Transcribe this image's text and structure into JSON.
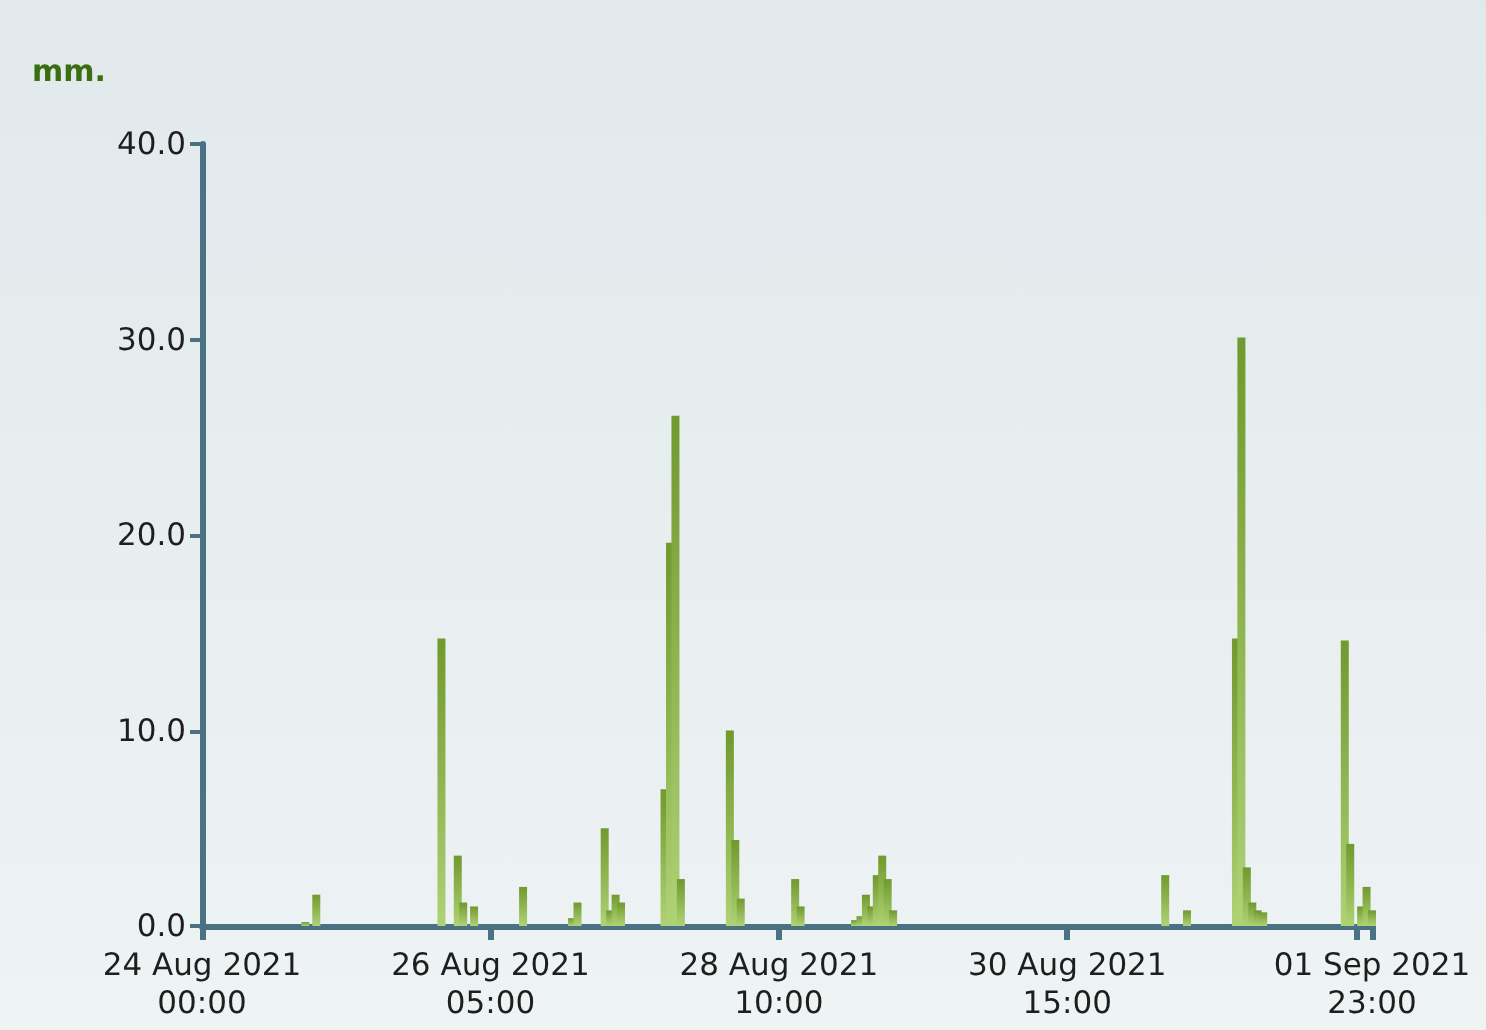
{
  "chart_data": {
    "type": "bar",
    "ylabel": "mm.",
    "color": "#8cbf3a",
    "x": [
      "2021-08-24T19:00",
      "2021-08-24T21:00",
      "2021-08-25T20:00",
      "2021-08-25T23:00",
      "2021-08-26T00:00",
      "2021-08-26T02:00",
      "2021-08-26T11:00",
      "2021-08-26T20:00",
      "2021-08-26T21:00",
      "2021-08-27T02:00",
      "2021-08-27T03:00",
      "2021-08-27T04:00",
      "2021-08-27T05:00",
      "2021-08-27T13:00",
      "2021-08-27T14:00",
      "2021-08-27T15:00",
      "2021-08-27T16:00",
      "2021-08-28T01:00",
      "2021-08-28T02:00",
      "2021-08-28T03:00",
      "2021-08-28T13:00",
      "2021-08-28T14:00",
      "2021-08-29T00:00",
      "2021-08-29T01:00",
      "2021-08-29T02:00",
      "2021-08-29T03:00",
      "2021-08-29T04:00",
      "2021-08-29T05:00",
      "2021-08-29T06:00",
      "2021-08-29T07:00",
      "2021-08-31T09:00",
      "2021-08-31T13:00",
      "2021-08-31T22:00",
      "2021-08-31T23:00",
      "2021-09-01T00:00",
      "2021-09-01T01:00",
      "2021-09-01T02:00",
      "2021-09-01T03:00",
      "2021-09-01T18:00",
      "2021-09-01T19:00",
      "2021-09-01T21:00",
      "2021-09-01T22:00",
      "2021-09-01T23:00"
    ],
    "values": [
      0.2,
      1.6,
      14.7,
      3.6,
      1.2,
      1.0,
      2.0,
      0.4,
      1.2,
      5.0,
      0.8,
      1.6,
      1.2,
      7.0,
      19.6,
      26.1,
      2.4,
      10.0,
      4.4,
      1.4,
      2.4,
      1.0,
      0.3,
      0.5,
      1.6,
      1.0,
      2.6,
      3.6,
      2.4,
      0.8,
      2.6,
      0.8,
      14.7,
      30.1,
      3.0,
      1.2,
      0.8,
      0.7,
      14.6,
      4.2,
      1.0,
      2.0,
      0.8
    ],
    "xlim": [
      "2021-08-24T00:00",
      "2021-09-01T23:00"
    ],
    "xticks": [
      {
        "value": "2021-08-24T00:00",
        "label": "24 Aug 2021\n00:00"
      },
      {
        "value": "2021-08-26T05:00",
        "label": "26 Aug 2021\n05:00"
      },
      {
        "value": "2021-08-28T10:00",
        "label": "28 Aug 2021\n10:00"
      },
      {
        "value": "2021-08-30T15:00",
        "label": "30 Aug 2021\n15:00"
      },
      {
        "value": "2021-09-01T20:00",
        "label": null
      },
      {
        "value": "2021-09-01T23:00",
        "label": "01 Sep 2021\n23:00"
      }
    ],
    "ylim": [
      0,
      40
    ],
    "yticks": [
      {
        "value": 0,
        "label": "0.0"
      },
      {
        "value": 10,
        "label": "10.0"
      },
      {
        "value": 20,
        "label": "20.0"
      },
      {
        "value": 30,
        "label": "30.0"
      },
      {
        "value": 40,
        "label": "40.0"
      }
    ]
  }
}
